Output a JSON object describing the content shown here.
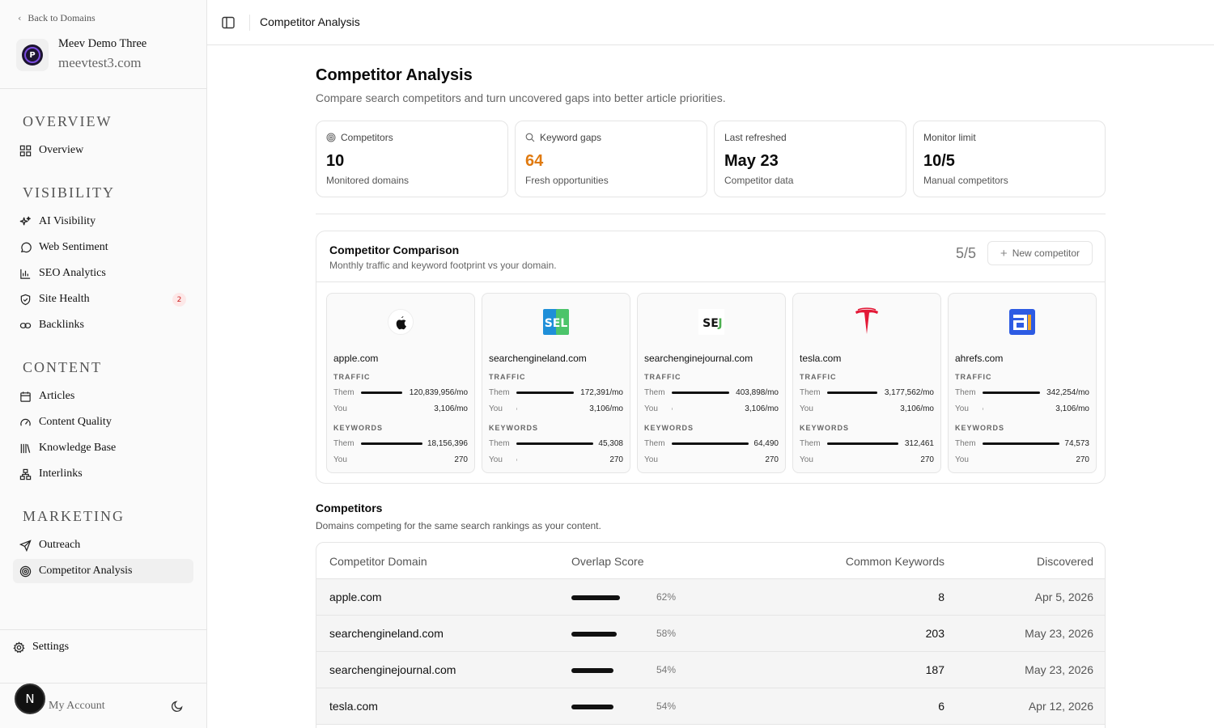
{
  "sidebar": {
    "back_label": "Back to Domains",
    "domain_name": "Meev Demo Three",
    "domain_url": "meevtest3.com",
    "logo_letter": "P",
    "sections": {
      "overview": "OVERVIEW",
      "visibility": "VISIBILITY",
      "content": "CONTENT",
      "marketing": "MARKETING"
    },
    "items": {
      "overview": "Overview",
      "ai_visibility": "AI Visibility",
      "web_sentiment": "Web Sentiment",
      "seo_analytics": "SEO Analytics",
      "site_health": "Site Health",
      "site_health_badge": "2",
      "backlinks": "Backlinks",
      "articles": "Articles",
      "content_quality": "Content Quality",
      "knowledge_base": "Knowledge Base",
      "interlinks": "Interlinks",
      "outreach": "Outreach",
      "competitor_analysis": "Competitor Analysis"
    },
    "settings": "Settings",
    "account": "My Account",
    "avatar_letter": "N"
  },
  "topbar": {
    "title": "Competitor Analysis"
  },
  "page": {
    "title": "Competitor Analysis",
    "subtitle": "Compare search competitors and turn uncovered gaps into better article priorities."
  },
  "stats": [
    {
      "label": "Competitors",
      "value": "10",
      "desc": "Monitored domains",
      "icon": "target-icon"
    },
    {
      "label": "Keyword gaps",
      "value": "64",
      "desc": "Fresh opportunities",
      "icon": "search-icon",
      "accent": "#e07a10"
    },
    {
      "label": "Last refreshed",
      "value": "May 23",
      "desc": "Competitor data"
    },
    {
      "label": "Monitor limit",
      "value": "10/5",
      "desc": "Manual competitors"
    }
  ],
  "comparison": {
    "title": "Competitor Comparison",
    "subtitle": "Monthly traffic and keyword footprint vs your domain.",
    "count": "5/5",
    "new_button": "New competitor",
    "traffic_label": "TRAFFIC",
    "keywords_label": "KEYWORDS",
    "them_label": "Them",
    "you_label": "You",
    "cards": [
      {
        "domain": "apple.com",
        "logo": "apple-logo",
        "traffic_them": "120,839,956/mo",
        "traffic_you": "3,106/mo",
        "kw_them": "18,156,396",
        "kw_you": "270"
      },
      {
        "domain": "searchengineland.com",
        "logo": "sel-logo",
        "traffic_them": "172,391/mo",
        "traffic_you": "3,106/mo",
        "kw_them": "45,308",
        "kw_you": "270"
      },
      {
        "domain": "searchenginejournal.com",
        "logo": "sej-logo",
        "traffic_them": "403,898/mo",
        "traffic_you": "3,106/mo",
        "kw_them": "64,490",
        "kw_you": "270"
      },
      {
        "domain": "tesla.com",
        "logo": "tesla-logo",
        "traffic_them": "3,177,562/mo",
        "traffic_you": "3,106/mo",
        "kw_them": "312,461",
        "kw_you": "270"
      },
      {
        "domain": "ahrefs.com",
        "logo": "ahrefs-logo",
        "traffic_them": "342,254/mo",
        "traffic_you": "3,106/mo",
        "kw_them": "74,573",
        "kw_you": "270"
      }
    ]
  },
  "competitors": {
    "title": "Competitors",
    "subtitle": "Domains competing for the same search rankings as your content.",
    "columns": [
      "Competitor Domain",
      "Overlap Score",
      "Common Keywords",
      "Discovered"
    ],
    "rows": [
      {
        "domain": "apple.com",
        "overlap": "62%",
        "overlap_value": 62,
        "common": "8",
        "discovered": "Apr 5, 2026"
      },
      {
        "domain": "searchengineland.com",
        "overlap": "58%",
        "overlap_value": 58,
        "common": "203",
        "discovered": "May 23, 2026"
      },
      {
        "domain": "searchenginejournal.com",
        "overlap": "54%",
        "overlap_value": 54,
        "common": "187",
        "discovered": "May 23, 2026"
      },
      {
        "domain": "tesla.com",
        "overlap": "54%",
        "overlap_value": 54,
        "common": "6",
        "discovered": "Apr 12, 2026"
      }
    ]
  }
}
